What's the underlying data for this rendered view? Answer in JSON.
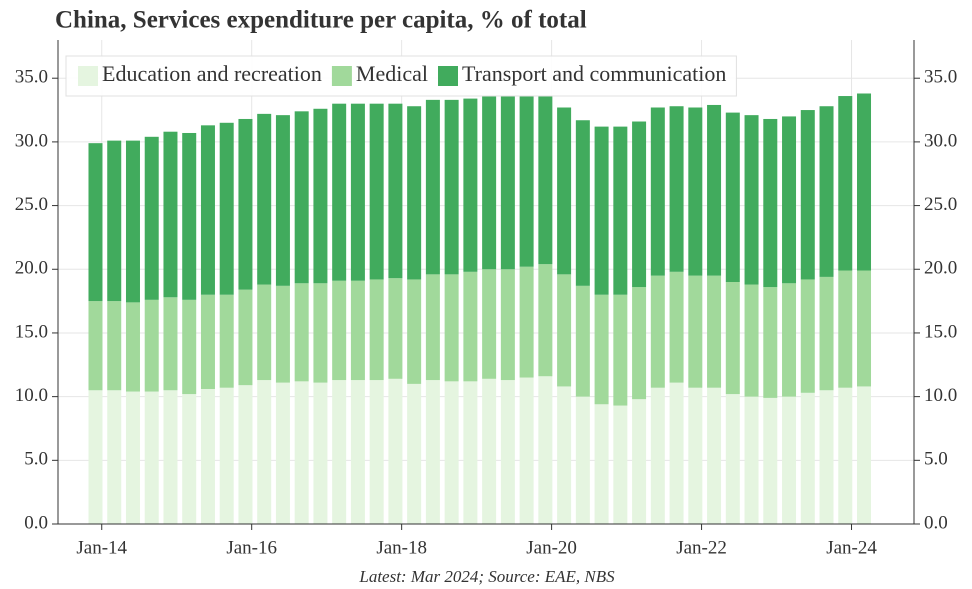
{
  "chart_data": {
    "type": "stacked-bar",
    "title": "China, Services expenditure per capita, % of total",
    "source": "Latest: Mar 2024; Source: EAE, NBS",
    "x": [
      "2013-12",
      "2014-03",
      "2014-06",
      "2014-09",
      "2014-12",
      "2015-03",
      "2015-06",
      "2015-09",
      "2015-12",
      "2016-03",
      "2016-06",
      "2016-09",
      "2016-12",
      "2017-03",
      "2017-06",
      "2017-09",
      "2017-12",
      "2018-03",
      "2018-06",
      "2018-09",
      "2018-12",
      "2019-03",
      "2019-06",
      "2019-09",
      "2019-12",
      "2020-03",
      "2020-06",
      "2020-09",
      "2020-12",
      "2021-03",
      "2021-06",
      "2021-09",
      "2021-12",
      "2022-03",
      "2022-06",
      "2022-09",
      "2022-12",
      "2023-03",
      "2023-06",
      "2023-09",
      "2023-12",
      "2024-03"
    ],
    "series": [
      {
        "name": "Education and recreation",
        "color": "#e5f5e0",
        "values": [
          10.5,
          10.5,
          10.4,
          10.4,
          10.5,
          10.2,
          10.6,
          10.7,
          10.9,
          11.3,
          11.1,
          11.2,
          11.1,
          11.3,
          11.3,
          11.3,
          11.4,
          11.0,
          11.3,
          11.2,
          11.2,
          11.4,
          11.3,
          11.5,
          11.6,
          10.8,
          10.0,
          9.4,
          9.3,
          9.8,
          10.7,
          11.1,
          10.7,
          10.7,
          10.2,
          10.0,
          9.9,
          10.0,
          10.3,
          10.5,
          10.7,
          10.8
        ]
      },
      {
        "name": "Medical",
        "color": "#a1d99b",
        "values": [
          7.0,
          7.0,
          7.0,
          7.2,
          7.3,
          7.4,
          7.4,
          7.3,
          7.5,
          7.5,
          7.6,
          7.7,
          7.8,
          7.8,
          7.8,
          7.9,
          7.9,
          8.2,
          8.3,
          8.4,
          8.6,
          8.6,
          8.7,
          8.7,
          8.8,
          8.8,
          8.7,
          8.6,
          8.7,
          8.8,
          8.8,
          8.7,
          8.8,
          8.8,
          8.8,
          8.8,
          8.7,
          8.9,
          8.9,
          8.9,
          9.2,
          9.1
        ]
      },
      {
        "name": "Transport and communication",
        "color": "#41ab5d",
        "values": [
          12.4,
          12.6,
          12.7,
          12.8,
          13.0,
          13.1,
          13.3,
          13.5,
          13.4,
          13.4,
          13.4,
          13.5,
          13.7,
          13.9,
          13.9,
          13.8,
          13.7,
          13.6,
          13.7,
          13.7,
          13.6,
          13.6,
          13.6,
          13.4,
          13.2,
          13.1,
          13.0,
          13.2,
          13.2,
          13.0,
          13.2,
          13.0,
          13.2,
          13.4,
          13.3,
          13.3,
          13.2,
          13.1,
          13.3,
          13.4,
          13.7,
          13.9
        ]
      }
    ],
    "xlim": [
      "2013-06",
      "2024-11"
    ],
    "xticks": [
      {
        "value": "2014-01",
        "label": "Jan-14"
      },
      {
        "value": "2016-01",
        "label": "Jan-16"
      },
      {
        "value": "2018-01",
        "label": "Jan-18"
      },
      {
        "value": "2020-01",
        "label": "Jan-20"
      },
      {
        "value": "2022-01",
        "label": "Jan-22"
      },
      {
        "value": "2024-01",
        "label": "Jan-24"
      }
    ],
    "ylim": [
      0,
      38
    ],
    "yticks": [
      {
        "value": 0,
        "label": "0.0"
      },
      {
        "value": 5,
        "label": "5.0"
      },
      {
        "value": 10,
        "label": "10.0"
      },
      {
        "value": 15,
        "label": "15.0"
      },
      {
        "value": 20,
        "label": "20.0"
      },
      {
        "value": 25,
        "label": "25.0"
      },
      {
        "value": 30,
        "label": "30.0"
      },
      {
        "value": 35,
        "label": "35.0"
      }
    ],
    "grid": true,
    "legend": "top-left"
  }
}
